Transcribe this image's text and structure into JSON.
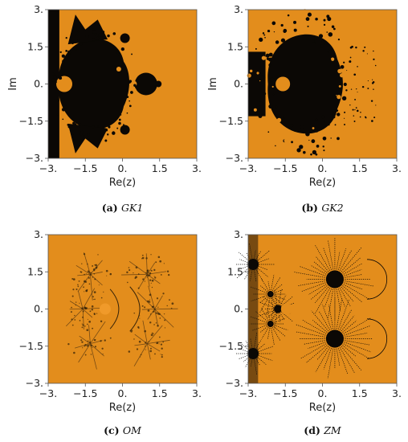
{
  "figure": {
    "panels": [
      {
        "id": "a",
        "caption_label": "(a)",
        "caption_name": "GK1",
        "xlabel": "Re(z)",
        "ylabel": "Im",
        "kind": "mandelbrot"
      },
      {
        "id": "b",
        "caption_label": "(b)",
        "caption_name": "GK2",
        "xlabel": "Re(z)",
        "ylabel": "Im",
        "kind": "ragged"
      },
      {
        "id": "c",
        "caption_label": "(c)",
        "caption_name": "OM",
        "xlabel": "Re(z)",
        "ylabel": "",
        "kind": "filament"
      },
      {
        "id": "d",
        "caption_label": "(d)",
        "caption_name": "ZM",
        "xlabel": "Re(z)",
        "ylabel": "",
        "kind": "radial"
      }
    ],
    "x_ticks": [
      "−3.",
      "−1.5",
      "0.",
      "1.5",
      "3."
    ],
    "y_ticks": [
      "3.",
      "1.5",
      "0.",
      "−1.5",
      "−3."
    ],
    "colors": {
      "orange": "#e38d1c",
      "dark": "#0b0805",
      "axis": "#555555"
    }
  },
  "chart_data": [
    {
      "type": "heatmap",
      "title": "GK1",
      "xlabel": "Re(z)",
      "ylabel": "Im",
      "xlim": [
        -3,
        3
      ],
      "ylim": [
        -3,
        3
      ],
      "x_ticks": [
        -3,
        -1.5,
        0,
        1.5,
        3
      ],
      "y_ticks": [
        -3,
        -1.5,
        0,
        1.5,
        3
      ]
    },
    {
      "type": "heatmap",
      "title": "GK2",
      "xlabel": "Re(z)",
      "ylabel": "Im",
      "xlim": [
        -3,
        3
      ],
      "ylim": [
        -3,
        3
      ],
      "x_ticks": [
        -3,
        -1.5,
        0,
        1.5,
        3
      ],
      "y_ticks": [
        -3,
        -1.5,
        0,
        1.5,
        3
      ]
    },
    {
      "type": "heatmap",
      "title": "OM",
      "xlabel": "Re(z)",
      "ylabel": "",
      "xlim": [
        -3,
        3
      ],
      "ylim": [
        -3,
        3
      ],
      "x_ticks": [
        -3,
        -1.5,
        0,
        1.5,
        3
      ],
      "y_ticks": [
        -3,
        -1.5,
        0,
        1.5,
        3
      ]
    },
    {
      "type": "heatmap",
      "title": "ZM",
      "xlabel": "Re(z)",
      "ylabel": "",
      "xlim": [
        -3,
        3
      ],
      "ylim": [
        -3,
        3
      ],
      "x_ticks": [
        -3,
        -1.5,
        0,
        1.5,
        3
      ],
      "y_ticks": [
        -3,
        -1.5,
        0,
        1.5,
        3
      ]
    }
  ]
}
